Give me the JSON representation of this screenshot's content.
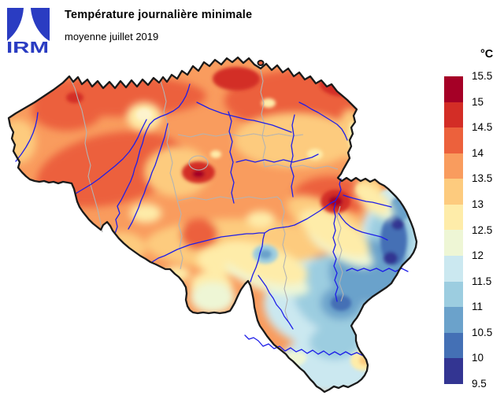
{
  "header": {
    "title": "Température journalière minimale",
    "subtitle": "moyenne juillet 2019"
  },
  "logo": {
    "text": "IRM",
    "color": "#2a3cc2"
  },
  "legend": {
    "unit": "°C",
    "ticks": [
      "15.5",
      "15",
      "14.5",
      "14",
      "13.5",
      "13",
      "12.5",
      "12",
      "11.5",
      "11",
      "10.5",
      "10",
      "9.5"
    ],
    "bands": [
      {
        "range": "15-15.5",
        "color": "#a50026"
      },
      {
        "range": "14.5-15",
        "color": "#d32d26"
      },
      {
        "range": "14-14.5",
        "color": "#ec613c"
      },
      {
        "range": "13.5-14",
        "color": "#f99c5e"
      },
      {
        "range": "13-13.5",
        "color": "#fdcb7e"
      },
      {
        "range": "12.5-13",
        "color": "#feeca9"
      },
      {
        "range": "12-12.5",
        "color": "#eef6d5"
      },
      {
        "range": "11.5-12",
        "color": "#cbe8f0"
      },
      {
        "range": "11-11.5",
        "color": "#9ccde0"
      },
      {
        "range": "10.5-11",
        "color": "#6ba2cb"
      },
      {
        "range": "10-10.5",
        "color": "#4470b5"
      },
      {
        "range": "9.5-10",
        "color": "#333592"
      }
    ],
    "value_range": {
      "min": 9.5,
      "max": 15.5,
      "step": 0.5
    }
  },
  "map": {
    "region": "Belgium",
    "river_color": "#1f1fe8",
    "border_color": "#1a1a1a",
    "province_border_color": "#b3b3b3"
  }
}
